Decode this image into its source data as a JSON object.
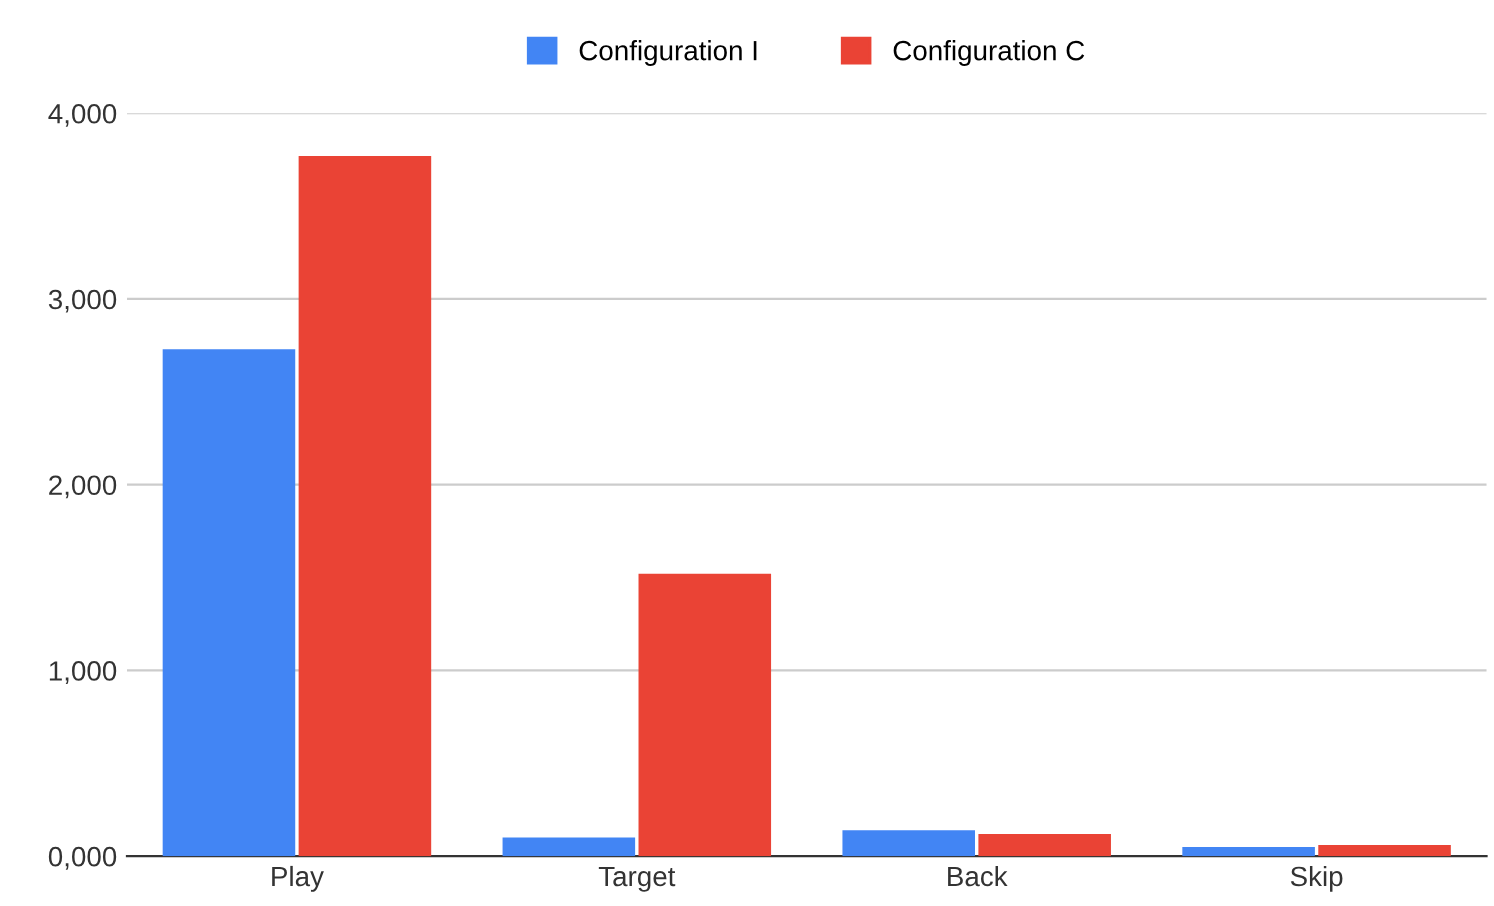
{
  "chart_data": {
    "type": "bar",
    "categories": [
      "Play",
      "Target",
      "Back",
      "Skip"
    ],
    "series": [
      {
        "name": "Configuration I",
        "color": "#4285f4",
        "values": [
          2730,
          100,
          140,
          50
        ]
      },
      {
        "name": "Configuration C",
        "color": "#ea4335",
        "values": [
          3770,
          1520,
          120,
          60
        ]
      }
    ],
    "ylim": [
      0,
      4000
    ],
    "yticks": [
      {
        "value": 0,
        "label": "0,000"
      },
      {
        "value": 1000,
        "label": "1,000"
      },
      {
        "value": 2000,
        "label": "2,000"
      },
      {
        "value": 3000,
        "label": "3,000"
      },
      {
        "value": 4000,
        "label": "4,000"
      }
    ],
    "grid": "y",
    "legend": "top"
  }
}
